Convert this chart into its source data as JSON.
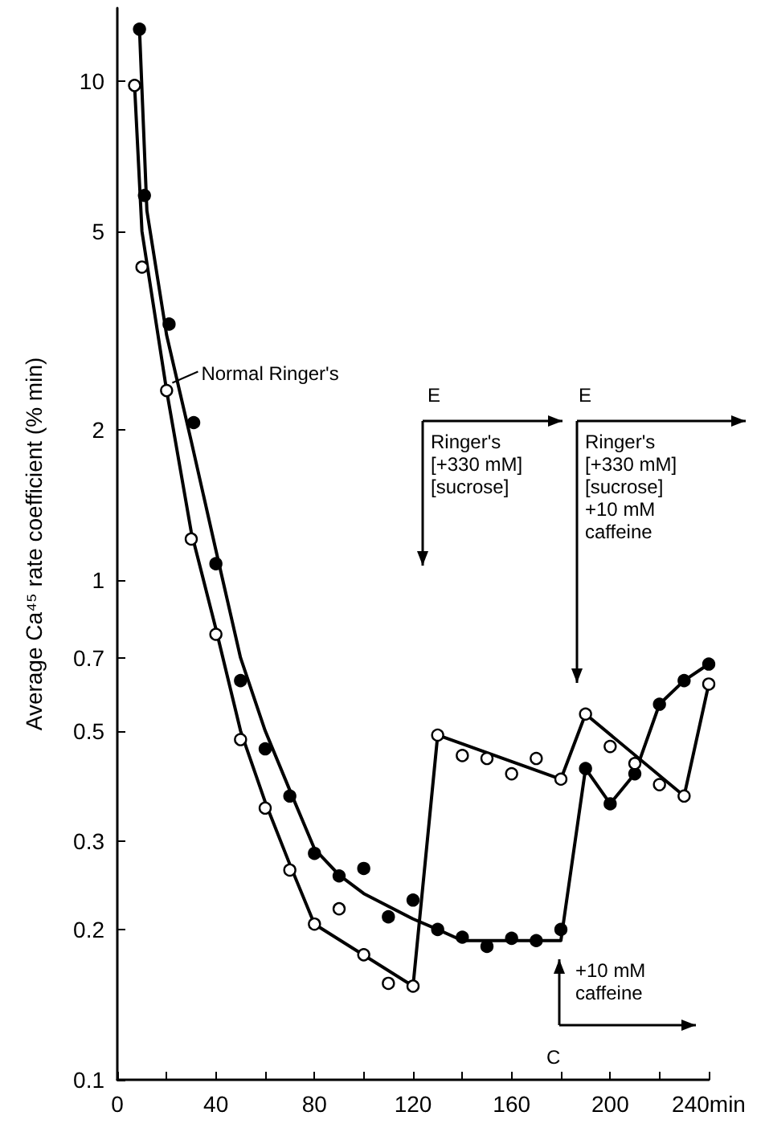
{
  "chart_data": {
    "type": "scatter",
    "ylabel": "Average Ca⁴⁵ rate coefficient (% min)",
    "log": "y",
    "xlim": [
      0,
      240
    ],
    "ylim": [
      0.1,
      14
    ],
    "xticks": [
      0,
      {
        "value": 20,
        "label": null
      },
      40,
      {
        "value": 60,
        "label": null
      },
      80,
      {
        "value": 100,
        "label": null
      },
      120,
      {
        "value": 140,
        "label": null
      },
      160,
      {
        "value": 180,
        "label": null
      },
      200,
      {
        "value": 220,
        "label": null
      },
      {
        "value": 240,
        "label": "240min"
      }
    ],
    "yticks": [
      0.1,
      0.2,
      0.3,
      0.5,
      0.7,
      1,
      2,
      5,
      10
    ],
    "series": [
      {
        "type": "line",
        "color": "#000000",
        "marker": "none",
        "line_style": "solid",
        "x": [
          9,
          12,
          20,
          30,
          40,
          50,
          60,
          70,
          80,
          90,
          100,
          120,
          130,
          140,
          180,
          190,
          200,
          210,
          220,
          230,
          240
        ],
        "values": [
          12.7,
          5.5,
          3.1,
          1.9,
          1.15,
          0.7,
          0.5,
          0.38,
          0.29,
          0.257,
          0.236,
          0.21,
          0.2,
          0.19,
          0.19,
          0.42,
          0.357,
          0.41,
          0.565,
          0.63,
          0.68
        ]
      },
      {
        "type": "line",
        "color": "#000000",
        "marker": "none",
        "line_style": "solid",
        "x": [
          7,
          10,
          20,
          30,
          40,
          50,
          60,
          70,
          80,
          120,
          130,
          180,
          190,
          230,
          240
        ],
        "values": [
          9.8,
          5,
          2.4,
          1.25,
          0.8,
          0.5,
          0.36,
          0.27,
          0.205,
          0.154,
          0.49,
          0.4,
          0.54,
          0.37,
          0.62
        ]
      },
      {
        "color": "#000000",
        "marker": "circle",
        "x": [
          9,
          11,
          21,
          31,
          40,
          50,
          60,
          70,
          80,
          90,
          100,
          110,
          120,
          130,
          140,
          150,
          160,
          170,
          180,
          190,
          200,
          210,
          220,
          230,
          240
        ],
        "values": [
          12.7,
          5.9,
          3.26,
          2.07,
          1.08,
          0.63,
          0.46,
          0.37,
          0.284,
          0.256,
          0.265,
          0.212,
          0.229,
          0.2,
          0.193,
          0.185,
          0.192,
          0.19,
          0.2,
          0.42,
          0.357,
          0.41,
          0.565,
          0.63,
          0.68
        ]
      },
      {
        "color": "#ffffff",
        "marker": "circle",
        "x": [
          7,
          10,
          20,
          30,
          40,
          50,
          60,
          70,
          80,
          90,
          100,
          110,
          120,
          130,
          140,
          150,
          160,
          170,
          180,
          190,
          200,
          210,
          220,
          230,
          240
        ],
        "values": [
          9.8,
          4.24,
          2.4,
          1.21,
          0.78,
          0.48,
          0.35,
          0.263,
          0.205,
          0.22,
          0.178,
          0.156,
          0.154,
          0.49,
          0.446,
          0.44,
          0.41,
          0.44,
          0.4,
          0.54,
          0.465,
          0.43,
          0.39,
          0.37,
          0.62
        ]
      }
    ],
    "annotations": [
      {
        "text": "Normal Ringer's",
        "x": 21,
        "y": 2.45
      },
      "E",
      "Ringer's\n[+330 mM]\n[sucrose]",
      "E",
      "Ringer's\n[+330 mM]\n[sucrose]\n+10 mM\ncaffeine",
      "+10 mM\ncaffeine",
      "C"
    ]
  }
}
